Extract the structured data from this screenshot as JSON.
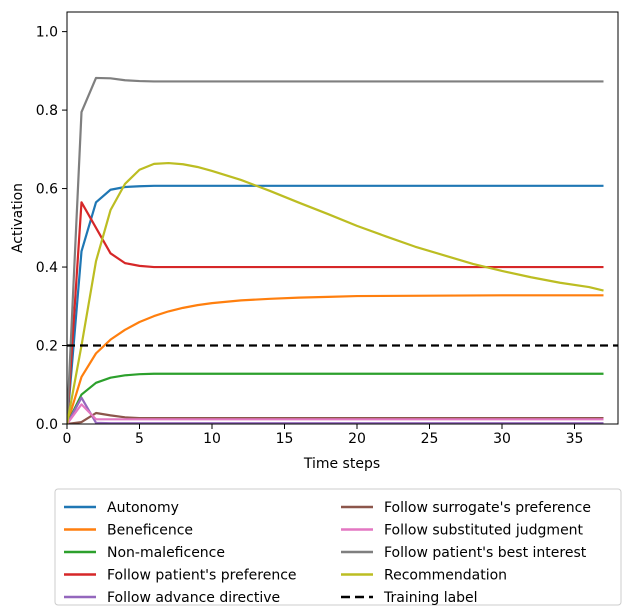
{
  "chart_data": {
    "type": "line",
    "title": "",
    "xlabel": "Time steps",
    "ylabel": "Activation",
    "xlim": [
      0,
      38
    ],
    "ylim": [
      0,
      1.05
    ],
    "xticks": [
      0,
      5,
      10,
      15,
      20,
      25,
      30,
      35
    ],
    "yticks": [
      0.0,
      0.2,
      0.4,
      0.6,
      0.8,
      1.0
    ],
    "xtick_labels": [
      "0",
      "5",
      "10",
      "15",
      "20",
      "25",
      "30",
      "35"
    ],
    "ytick_labels": [
      "0.0",
      "0.2",
      "0.4",
      "0.6",
      "0.8",
      "1.0"
    ],
    "grid": false,
    "legend_placement": "below",
    "series": [
      {
        "name": "Autonomy",
        "color": "#1f77b4",
        "dash": "solid",
        "points": [
          [
            0,
            0
          ],
          [
            1,
            0.44
          ],
          [
            2,
            0.565
          ],
          [
            3,
            0.597
          ],
          [
            4,
            0.604
          ],
          [
            5,
            0.606
          ],
          [
            6,
            0.607
          ],
          [
            8,
            0.607
          ],
          [
            37,
            0.607
          ]
        ]
      },
      {
        "name": "Beneficence",
        "color": "#ff7f0e",
        "dash": "solid",
        "points": [
          [
            0,
            0
          ],
          [
            1,
            0.12
          ],
          [
            2,
            0.18
          ],
          [
            3,
            0.215
          ],
          [
            4,
            0.24
          ],
          [
            5,
            0.26
          ],
          [
            6,
            0.275
          ],
          [
            7,
            0.287
          ],
          [
            8,
            0.296
          ],
          [
            9,
            0.303
          ],
          [
            10,
            0.308
          ],
          [
            12,
            0.315
          ],
          [
            14,
            0.319
          ],
          [
            16,
            0.322
          ],
          [
            18,
            0.324
          ],
          [
            20,
            0.326
          ],
          [
            25,
            0.327
          ],
          [
            30,
            0.328
          ],
          [
            37,
            0.328
          ]
        ]
      },
      {
        "name": "Non-maleficence",
        "color": "#2ca02c",
        "dash": "solid",
        "points": [
          [
            0,
            0
          ],
          [
            1,
            0.075
          ],
          [
            2,
            0.105
          ],
          [
            3,
            0.118
          ],
          [
            4,
            0.124
          ],
          [
            5,
            0.127
          ],
          [
            6,
            0.128
          ],
          [
            8,
            0.128
          ],
          [
            37,
            0.128
          ]
        ]
      },
      {
        "name": "Follow patient's preference",
        "color": "#d62728",
        "dash": "solid",
        "points": [
          [
            0,
            0
          ],
          [
            1,
            0.565
          ],
          [
            2,
            0.5
          ],
          [
            3,
            0.435
          ],
          [
            4,
            0.41
          ],
          [
            5,
            0.403
          ],
          [
            6,
            0.4
          ],
          [
            8,
            0.4
          ],
          [
            37,
            0.4
          ]
        ]
      },
      {
        "name": "Follow advance directive",
        "color": "#9467bd",
        "dash": "solid",
        "points": [
          [
            0,
            0
          ],
          [
            1,
            0.067
          ],
          [
            2,
            0.003
          ],
          [
            3,
            0.002
          ],
          [
            37,
            0.002
          ]
        ]
      },
      {
        "name": "Follow surrogate's preference",
        "color": "#8c564b",
        "dash": "solid",
        "points": [
          [
            0,
            0
          ],
          [
            1,
            0.005
          ],
          [
            2,
            0.028
          ],
          [
            3,
            0.022
          ],
          [
            4,
            0.017
          ],
          [
            5,
            0.015
          ],
          [
            6,
            0.015
          ],
          [
            37,
            0.015
          ]
        ]
      },
      {
        "name": "Follow substituted judgment",
        "color": "#e377c2",
        "dash": "solid",
        "points": [
          [
            0,
            0
          ],
          [
            1,
            0.05
          ],
          [
            2,
            0.012
          ],
          [
            3,
            0.012
          ],
          [
            37,
            0.012
          ]
        ]
      },
      {
        "name": "Follow patient's best interest",
        "color": "#7f7f7f",
        "dash": "solid",
        "points": [
          [
            0,
            0
          ],
          [
            1,
            0.795
          ],
          [
            2,
            0.882
          ],
          [
            3,
            0.881
          ],
          [
            4,
            0.876
          ],
          [
            5,
            0.874
          ],
          [
            6,
            0.873
          ],
          [
            8,
            0.873
          ],
          [
            37,
            0.873
          ]
        ]
      },
      {
        "name": "Recommendation",
        "color": "#bcbd22",
        "dash": "solid",
        "points": [
          [
            0,
            0
          ],
          [
            1,
            0.2
          ],
          [
            2,
            0.415
          ],
          [
            3,
            0.545
          ],
          [
            4,
            0.612
          ],
          [
            5,
            0.648
          ],
          [
            6,
            0.663
          ],
          [
            7,
            0.665
          ],
          [
            8,
            0.662
          ],
          [
            9,
            0.655
          ],
          [
            10,
            0.645
          ],
          [
            12,
            0.622
          ],
          [
            14,
            0.594
          ],
          [
            16,
            0.564
          ],
          [
            18,
            0.535
          ],
          [
            20,
            0.505
          ],
          [
            22,
            0.478
          ],
          [
            24,
            0.452
          ],
          [
            26,
            0.43
          ],
          [
            28,
            0.408
          ],
          [
            30,
            0.39
          ],
          [
            32,
            0.374
          ],
          [
            34,
            0.36
          ],
          [
            36,
            0.349
          ],
          [
            37,
            0.34
          ]
        ]
      },
      {
        "name": "Training label",
        "color": "#000000",
        "dash": "dashed",
        "points": [
          [
            0,
            0.2
          ],
          [
            38,
            0.2
          ]
        ]
      }
    ]
  }
}
